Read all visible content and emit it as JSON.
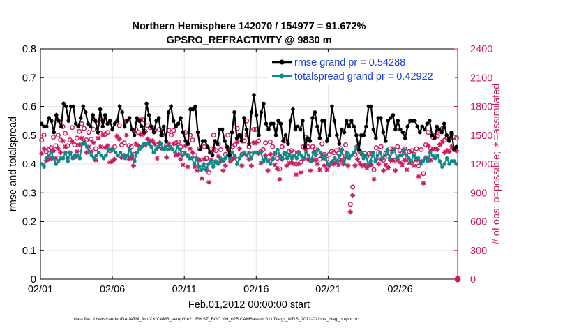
{
  "title_line1": "Northern Hemisphere 142070 / 154977 = 91.672%",
  "title_line2": "GPSRO_REFRACTIVITY @ 9830 m",
  "xlabel": "Feb.01,2012 00:00:00 start",
  "ylabel_left": "rmse and totalspread",
  "ylabel_right": "# of obs: o=possible; ∗=assimilated",
  "footnote": "data file: /Users/raeder/DAI/ATM_forcXX/CAM6_setup/f.e21.FHIST_BGC.f09_025.CAM6assim.011/Diags_NTrS_2012-02/obs_diag_output.nc",
  "colors": {
    "rmse": "#000000",
    "spread": "#0f8a8a",
    "obs": "#cc1a5e",
    "legend_text": "#1a3fd6",
    "grid": "#e6e6e6"
  },
  "chart_data": {
    "type": "line",
    "x_unit": "day",
    "x_range": [
      "02/01",
      "02/29"
    ],
    "x_ticks": [
      {
        "label": "02/01",
        "day": 0
      },
      {
        "label": "02/06",
        "day": 5
      },
      {
        "label": "02/11",
        "day": 10
      },
      {
        "label": "02/16",
        "day": 15
      },
      {
        "label": "02/21",
        "day": 20
      },
      {
        "label": "02/26",
        "day": 25
      }
    ],
    "ylim_left": [
      0,
      0.8
    ],
    "yticks_left": [
      "0",
      "0.1",
      "0.2",
      "0.3",
      "0.4",
      "0.5",
      "0.6",
      "0.7",
      "0.8"
    ],
    "ylim_right": [
      0,
      2400
    ],
    "yticks_right": [
      "0",
      "300",
      "600",
      "900",
      "1200",
      "1500",
      "1800",
      "2100",
      "2400"
    ],
    "legend_placement": "top-right",
    "grid": true,
    "series": [
      {
        "name": "rmse grand pr = 0.54288",
        "axis": "left",
        "marker": "filled-circle",
        "values": [
          0.54,
          0.53,
          0.53,
          0.56,
          0.55,
          0.51,
          0.57,
          0.55,
          0.53,
          0.61,
          0.6,
          0.55,
          0.6,
          0.6,
          0.54,
          0.53,
          0.56,
          0.6,
          0.58,
          0.54,
          0.53,
          0.57,
          0.55,
          0.51,
          0.59,
          0.53,
          0.57,
          0.54,
          0.55,
          0.52,
          0.54,
          0.55,
          0.6,
          0.58,
          0.53,
          0.55,
          0.56,
          0.52,
          0.5,
          0.56,
          0.55,
          0.53,
          0.51,
          0.61,
          0.57,
          0.53,
          0.51,
          0.55,
          0.56,
          0.5,
          0.53,
          0.48,
          0.58,
          0.6,
          0.55,
          0.53,
          0.54,
          0.56,
          0.51,
          0.48,
          0.47,
          0.59,
          0.59,
          0.6,
          0.51,
          0.45,
          0.48,
          0.48,
          0.46,
          0.44,
          0.43,
          0.48,
          0.47,
          0.52,
          0.52,
          0.48,
          0.46,
          0.43,
          0.51,
          0.58,
          0.49,
          0.5,
          0.48,
          0.56,
          0.52,
          0.47,
          0.58,
          0.64,
          0.57,
          0.5,
          0.58,
          0.61,
          0.54,
          0.52,
          0.54,
          0.54,
          0.5,
          0.55,
          0.54,
          0.48,
          0.5,
          0.47,
          0.55,
          0.59,
          0.52,
          0.53,
          0.52,
          0.55,
          0.46,
          0.49,
          0.48,
          0.56,
          0.58,
          0.53,
          0.49,
          0.55,
          0.55,
          0.48,
          0.5,
          0.6,
          0.55,
          0.5,
          0.47,
          0.52,
          0.51,
          0.55,
          0.53,
          0.55,
          0.53,
          0.5,
          0.45,
          0.5,
          0.5,
          0.53,
          0.6,
          0.6,
          0.52,
          0.49,
          0.56,
          0.56,
          0.51,
          0.48,
          0.55,
          0.56,
          0.57,
          0.52,
          0.55,
          0.52,
          0.51,
          0.49,
          0.53,
          0.55,
          0.55,
          0.55,
          0.53,
          0.51,
          0.53,
          0.52,
          0.54,
          0.55,
          0.5,
          0.49,
          0.53,
          0.52,
          0.51,
          0.54,
          0.5,
          0.48,
          0.51,
          0.45,
          0.46
        ]
      },
      {
        "name": "totalspread grand pr = 0.42922",
        "axis": "left",
        "marker": "filled-circle",
        "values": [
          0.4,
          0.39,
          0.42,
          0.43,
          0.44,
          0.42,
          0.4,
          0.41,
          0.42,
          0.42,
          0.44,
          0.41,
          0.44,
          0.42,
          0.43,
          0.43,
          0.42,
          0.47,
          0.47,
          0.46,
          0.44,
          0.43,
          0.42,
          0.43,
          0.44,
          0.43,
          0.42,
          0.43,
          0.45,
          0.45,
          0.45,
          0.44,
          0.43,
          0.44,
          0.43,
          0.42,
          0.43,
          0.45,
          0.43,
          0.41,
          0.44,
          0.45,
          0.46,
          0.47,
          0.47,
          0.47,
          0.46,
          0.44,
          0.45,
          0.46,
          0.47,
          0.45,
          0.46,
          0.45,
          0.46,
          0.45,
          0.44,
          0.46,
          0.45,
          0.43,
          0.44,
          0.43,
          0.42,
          0.42,
          0.4,
          0.42,
          0.39,
          0.38,
          0.4,
          0.38,
          0.4,
          0.41,
          0.39,
          0.41,
          0.4,
          0.42,
          0.41,
          0.42,
          0.43,
          0.42,
          0.44,
          0.43,
          0.4,
          0.42,
          0.43,
          0.44,
          0.43,
          0.44,
          0.42,
          0.44,
          0.44,
          0.44,
          0.44,
          0.41,
          0.42,
          0.41,
          0.4,
          0.42,
          0.44,
          0.45,
          0.43,
          0.42,
          0.44,
          0.42,
          0.43,
          0.42,
          0.43,
          0.42,
          0.44,
          0.43,
          0.42,
          0.44,
          0.43,
          0.41,
          0.44,
          0.43,
          0.45,
          0.44,
          0.42,
          0.43,
          0.4,
          0.4,
          0.41,
          0.42,
          0.41,
          0.43,
          0.45,
          0.4,
          0.44,
          0.42,
          0.43,
          0.44,
          0.46,
          0.45,
          0.44,
          0.42,
          0.43,
          0.4,
          0.41,
          0.44,
          0.41,
          0.43,
          0.44,
          0.42,
          0.43,
          0.45,
          0.42,
          0.44,
          0.45,
          0.42,
          0.43,
          0.43,
          0.45,
          0.43,
          0.42,
          0.41,
          0.43,
          0.42,
          0.42,
          0.4,
          0.41,
          0.42,
          0.41,
          0.44,
          0.43,
          0.42,
          0.43,
          0.41,
          0.39,
          0.4,
          0.42,
          0.4,
          0.41,
          0.41,
          0.4
        ]
      },
      {
        "name": "possible",
        "axis": "right",
        "marker": "open-circle",
        "values": [
          1450,
          1500,
          1330,
          1350,
          1370,
          1480,
          1390,
          1500,
          1450,
          1590,
          1520,
          1390,
          1450,
          1580,
          1400,
          1470,
          1540,
          1620,
          1570,
          1450,
          1530,
          1460,
          1560,
          1360,
          1620,
          1520,
          1650,
          1510,
          1530,
          1340,
          1350,
          1380,
          1640,
          1600,
          1400,
          1420,
          1650,
          1390,
          1380,
          1300,
          1560,
          1530,
          1660,
          1660,
          1540,
          1600,
          1580,
          1580,
          1550,
          1390,
          1560,
          1500,
          1500,
          1400,
          1550,
          1500,
          1550,
          1420,
          1430,
          1380,
          1310,
          1530,
          1290,
          1500,
          1450,
          1290,
          1250,
          1360,
          1160,
          1380,
          1260,
          1110,
          1360,
          1500,
          1340,
          1410,
          1350,
          1240,
          1300,
          1500,
          1350,
          1380,
          1400,
          1570,
          1500,
          1300,
          1440,
          1650,
          1380,
          1300,
          1560,
          1560,
          1440,
          1330,
          1350,
          1420,
          1240,
          1430,
          1380,
          1310,
          1260,
          1150,
          1380,
          1440,
          1300,
          1330,
          1340,
          1320,
          1200,
          1320,
          1220,
          1380,
          1480,
          1380,
          1240,
          1380,
          1360,
          1320,
          1250,
          1410,
          1300,
          1250,
          1300,
          1330,
          1320,
          1340,
          1310,
          1360,
          1320,
          1400,
          1300,
          780,
          960,
          1300,
          1380,
          1330,
          1300,
          1310,
          1280,
          1310,
          1310,
          1140,
          1370,
          1320,
          1380,
          1240,
          1310,
          1280,
          1360,
          1360,
          1240,
          1380,
          1340,
          1310,
          1360,
          1260,
          1330,
          1340,
          1300,
          1360,
          1180,
          1350,
          1100,
          1400,
          1530,
          1360,
          1480,
          1500,
          1490,
          1540,
          1570,
          1450,
          1470,
          1460,
          1520,
          1480,
          1470
        ]
      },
      {
        "name": "assimilated",
        "axis": "right",
        "marker": "asterisk",
        "values": [
          1310,
          1360,
          1240,
          1250,
          1260,
          1340,
          1260,
          1360,
          1320,
          1440,
          1380,
          1260,
          1320,
          1430,
          1270,
          1330,
          1400,
          1470,
          1430,
          1320,
          1380,
          1330,
          1420,
          1240,
          1470,
          1380,
          1500,
          1370,
          1390,
          1220,
          1230,
          1250,
          1490,
          1460,
          1270,
          1290,
          1500,
          1260,
          1260,
          1180,
          1410,
          1390,
          1510,
          1510,
          1400,
          1460,
          1440,
          1440,
          1410,
          1260,
          1420,
          1360,
          1360,
          1270,
          1410,
          1360,
          1410,
          1290,
          1300,
          1250,
          1190,
          1390,
          1170,
          1360,
          1320,
          1170,
          1130,
          1240,
          1050,
          1250,
          1150,
          1010,
          1240,
          1360,
          1220,
          1280,
          1230,
          1130,
          1180,
          1360,
          1230,
          1250,
          1270,
          1430,
          1360,
          1180,
          1310,
          1500,
          1250,
          1180,
          1420,
          1420,
          1310,
          1210,
          1230,
          1290,
          1130,
          1300,
          1250,
          1190,
          1150,
          1040,
          1250,
          1310,
          1180,
          1210,
          1220,
          1200,
          1090,
          1200,
          1110,
          1250,
          1350,
          1250,
          1130,
          1250,
          1240,
          1200,
          1140,
          1280,
          1180,
          1140,
          1180,
          1210,
          1200,
          1220,
          1190,
          1240,
          1200,
          1270,
          1180,
          700,
          870,
          1180,
          1250,
          1210,
          1180,
          1190,
          1160,
          1190,
          1190,
          1040,
          1250,
          1200,
          1250,
          1130,
          1190,
          1160,
          1240,
          1240,
          1130,
          1250,
          1220,
          1190,
          1240,
          1140,
          1210,
          1220,
          1180,
          1240,
          1070,
          1230,
          1000,
          1270,
          1390,
          1240,
          1350,
          1360,
          1350,
          1400,
          1430,
          1320,
          1340,
          1330,
          1380,
          1350,
          1340
        ]
      }
    ]
  }
}
